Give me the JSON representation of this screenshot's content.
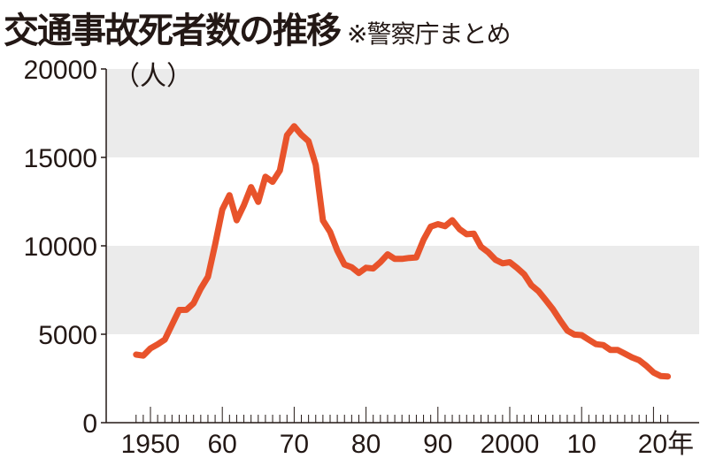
{
  "header": {
    "title": "交通事故死者数の推移",
    "note": "※警察庁まとめ"
  },
  "chart_data": {
    "type": "line",
    "title": "交通事故死者数の推移",
    "subtitle": "※警察庁まとめ",
    "ylabel": "（人）",
    "xlabel": "年",
    "ylim": [
      0,
      20000
    ],
    "xlim": [
      1947,
      2024
    ],
    "yticks": [
      0,
      5000,
      10000,
      15000,
      20000
    ],
    "ytick_labels": [
      "0",
      "5000",
      "10000",
      "15000",
      "20000"
    ],
    "xticks": [
      1950,
      1960,
      1970,
      1980,
      1990,
      2000,
      2010,
      2020
    ],
    "xtick_labels": [
      "1950",
      "60",
      "70",
      "80",
      "90",
      "2000",
      "10",
      "20年"
    ],
    "color": "#e8532b",
    "band_color": "#ebebeb",
    "series": [
      {
        "name": "交通事故死者数",
        "x": [
          1948,
          1949,
          1950,
          1951,
          1952,
          1953,
          1954,
          1955,
          1956,
          1957,
          1958,
          1959,
          1960,
          1961,
          1962,
          1963,
          1964,
          1965,
          1966,
          1967,
          1968,
          1969,
          1970,
          1971,
          1972,
          1973,
          1974,
          1975,
          1976,
          1977,
          1978,
          1979,
          1980,
          1981,
          1982,
          1983,
          1984,
          1985,
          1986,
          1987,
          1988,
          1989,
          1990,
          1991,
          1992,
          1993,
          1994,
          1995,
          1996,
          1997,
          1998,
          1999,
          2000,
          2001,
          2002,
          2003,
          2004,
          2005,
          2006,
          2007,
          2008,
          2009,
          2010,
          2011,
          2012,
          2013,
          2014,
          2015,
          2016,
          2017,
          2018,
          2019,
          2020,
          2021,
          2022
        ],
        "values": [
          3848,
          3790,
          4202,
          4429,
          4696,
          5544,
          6374,
          6379,
          6751,
          7575,
          8248,
          10079,
          12055,
          12865,
          11445,
          12301,
          13318,
          12484,
          13904,
          13618,
          14256,
          16257,
          16765,
          16278,
          15918,
          14574,
          11432,
          10792,
          9734,
          8945,
          8783,
          8466,
          8760,
          8719,
          9073,
          9520,
          9262,
          9261,
          9317,
          9347,
          10344,
          11086,
          11227,
          11109,
          11452,
          10945,
          10653,
          10684,
          9943,
          9642,
          9214,
          9012,
          9073,
          8757,
          8396,
          7768,
          7436,
          6937,
          6415,
          5796,
          5209,
          4979,
          4948,
          4691,
          4438,
          4388,
          4113,
          4117,
          3904,
          3694,
          3532,
          3215,
          2839,
          2636,
          2610
        ]
      }
    ]
  }
}
